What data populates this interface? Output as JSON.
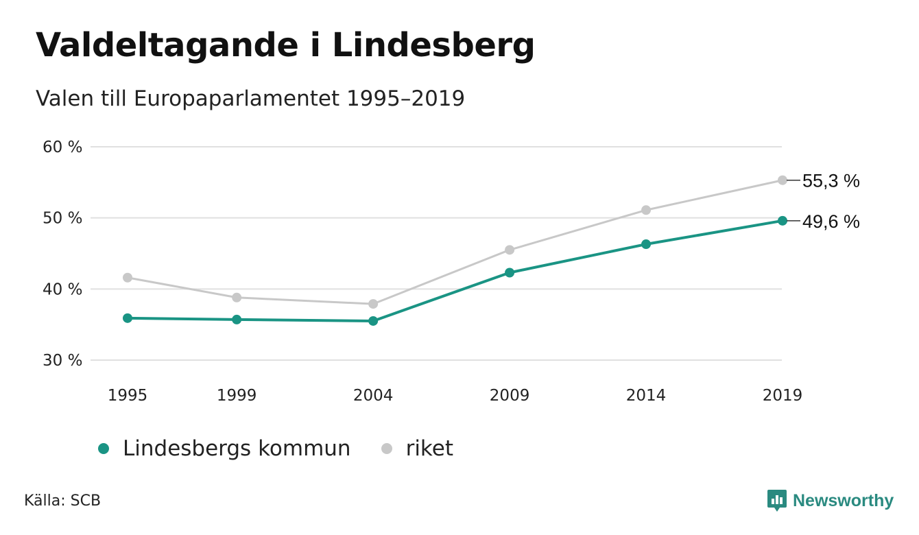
{
  "header": {
    "title": "Valdeltagande i Lindesberg",
    "subtitle": "Valen till Europaparlamentet 1995–2019"
  },
  "colors": {
    "kommun": "#1a9484",
    "riket": "#c8c8c8",
    "grid": "#e0e0e0",
    "brand": "#2a8a80"
  },
  "chart_data": {
    "type": "line",
    "x": [
      "1995",
      "1999",
      "2004",
      "2009",
      "2014",
      "2019"
    ],
    "x_numeric": [
      1995,
      1999,
      2004,
      2009,
      2014,
      2019
    ],
    "ylim": [
      30,
      60
    ],
    "yticks": [
      30,
      40,
      50,
      60
    ],
    "ytick_labels": [
      "30 %",
      "40 %",
      "50 %",
      "60 %"
    ],
    "grid": true,
    "legend_position": "bottom-left",
    "series": [
      {
        "name": "Lindesbergs kommun",
        "values": [
          35.9,
          35.7,
          35.5,
          42.3,
          46.3,
          49.6
        ],
        "end_label": "49,6 %"
      },
      {
        "name": "riket",
        "values": [
          41.6,
          38.8,
          37.9,
          45.5,
          51.1,
          55.3
        ],
        "end_label": "55,3 %"
      }
    ]
  },
  "legend": {
    "kommun": "Lindesbergs kommun",
    "riket": "riket"
  },
  "footer": {
    "source": "Källa: SCB",
    "brand": "Newsworthy"
  }
}
